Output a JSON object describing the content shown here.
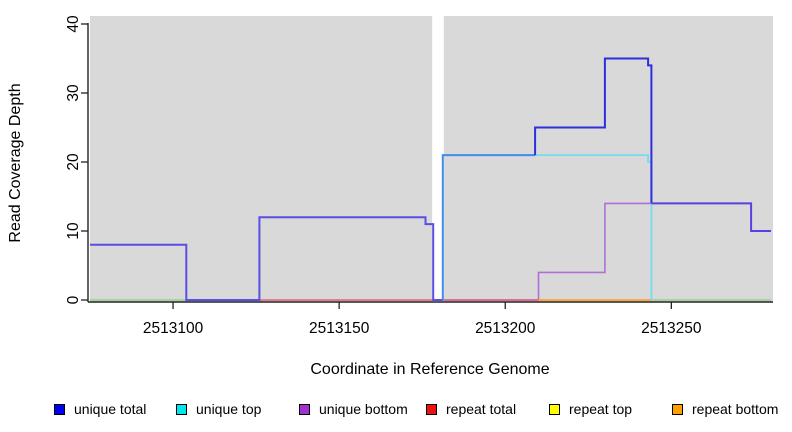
{
  "chart_data": {
    "type": "line",
    "step": true,
    "title": "",
    "xlabel": "Coordinate in Reference Genome",
    "ylabel": "Read Coverage Depth",
    "xlim": [
      2513075,
      2513280
    ],
    "ylim": [
      0,
      40
    ],
    "x_ticks": [
      "2513100",
      "2513150",
      "2513200",
      "2513250"
    ],
    "x_tick_values": [
      2513100,
      2513150,
      2513200,
      2513250
    ],
    "y_ticks": [
      "0",
      "10",
      "20",
      "30",
      "40"
    ],
    "y_tick_values": [
      0,
      10,
      20,
      30,
      40
    ],
    "grid": false,
    "plot_background": "#D9D9D9",
    "gap_band": {
      "x1": 2513178.0,
      "x2": 2513181.5,
      "color": "#FFFFFF"
    },
    "legend_position": "bottom",
    "legend": [
      {
        "label": "unique total",
        "color": "#0000EE"
      },
      {
        "label": "unique top",
        "color": "#00E5EE"
      },
      {
        "label": "unique bottom",
        "color": "#A22FD0"
      },
      {
        "label": "repeat total",
        "color": "#EE1111"
      },
      {
        "label": "repeat top",
        "color": "#FFFF00"
      },
      {
        "label": "repeat bottom",
        "color": "#FFA000"
      }
    ],
    "series": [
      {
        "name": "unique total",
        "color": "#0000EE",
        "step_points": [
          [
            2513075,
            8
          ],
          [
            2513104,
            0
          ],
          [
            2513126,
            12
          ],
          [
            2513176,
            11
          ],
          [
            2513178,
            0
          ],
          [
            2513181,
            21
          ],
          [
            2513209,
            25
          ],
          [
            2513230,
            35
          ],
          [
            2513243,
            34
          ],
          [
            2513244,
            14
          ],
          [
            2513274,
            10
          ],
          [
            2513280,
            10
          ]
        ]
      },
      {
        "name": "unique top",
        "color": "#00E5EE",
        "step_points": [
          [
            2513075,
            0
          ],
          [
            2513181,
            21
          ],
          [
            2513243,
            20
          ],
          [
            2513244,
            0
          ],
          [
            2513280,
            0
          ]
        ]
      },
      {
        "name": "unique bottom",
        "color": "#A22FD0",
        "step_points": [
          [
            2513075,
            8
          ],
          [
            2513104,
            0
          ],
          [
            2513126,
            12
          ],
          [
            2513176,
            11
          ],
          [
            2513178,
            0
          ],
          [
            2513210,
            4
          ],
          [
            2513230,
            14
          ],
          [
            2513274,
            10
          ],
          [
            2513280,
            10
          ]
        ]
      },
      {
        "name": "repeat total",
        "color": "#EE1111",
        "step_points": [
          [
            2513126,
            0
          ],
          [
            2513210,
            0
          ]
        ]
      },
      {
        "name": "repeat top",
        "color": "#FFFF00",
        "step_points": [
          [
            2513075,
            0
          ],
          [
            2513280,
            0
          ]
        ]
      },
      {
        "name": "repeat bottom",
        "color": "#FFA000",
        "step_points": [
          [
            2513210,
            0
          ],
          [
            2513244,
            0
          ]
        ]
      }
    ],
    "render_segments": [
      {
        "name": "zero-green-left",
        "color": "#8FD48F",
        "width": 1.6,
        "points": [
          [
            2513075,
            0
          ],
          [
            2513104,
            0
          ]
        ]
      },
      {
        "name": "zero-green-right",
        "color": "#8FD48F",
        "width": 1.6,
        "points": [
          [
            2513244,
            0
          ],
          [
            2513280,
            0
          ]
        ]
      },
      {
        "name": "unique-bottom-visible",
        "color": "#B06FD8",
        "width": 1.6,
        "points": [
          [
            2513181.2,
            0
          ],
          [
            2513210,
            0
          ],
          [
            2513210,
            4
          ],
          [
            2513230,
            4
          ],
          [
            2513230,
            14
          ],
          [
            2513244,
            14
          ]
        ]
      },
      {
        "name": "zero-red",
        "color": "#E0607A",
        "width": 1.6,
        "points": [
          [
            2513126,
            0
          ],
          [
            2513210,
            0
          ]
        ]
      },
      {
        "name": "zero-orange",
        "color": "#FFA030",
        "width": 1.8,
        "points": [
          [
            2513210,
            0
          ],
          [
            2513244,
            0
          ]
        ]
      },
      {
        "name": "unique-top-visible",
        "color": "#72DEED",
        "width": 1.8,
        "points": [
          [
            2513209,
            21
          ],
          [
            2513243,
            21
          ],
          [
            2513243,
            20
          ],
          [
            2513244,
            20
          ],
          [
            2513244,
            0
          ]
        ]
      },
      {
        "name": "total-left-violet",
        "color": "#5A4EE6",
        "width": 2,
        "points": [
          [
            2513075,
            8
          ],
          [
            2513104,
            8
          ],
          [
            2513104,
            0
          ],
          [
            2513126,
            0
          ],
          [
            2513126,
            12
          ],
          [
            2513176,
            12
          ],
          [
            2513176,
            11
          ],
          [
            2513178.3,
            11
          ],
          [
            2513178.3,
            0
          ],
          [
            2513181.2,
            0
          ]
        ]
      },
      {
        "name": "total-azure",
        "color": "#3F8CEF",
        "width": 2,
        "points": [
          [
            2513181.2,
            0
          ],
          [
            2513181.2,
            21
          ],
          [
            2513209,
            21
          ]
        ]
      },
      {
        "name": "total-strong-blue",
        "color": "#2E2EDF",
        "width": 2,
        "points": [
          [
            2513209,
            21
          ],
          [
            2513209,
            25
          ],
          [
            2513230,
            25
          ],
          [
            2513230,
            35
          ],
          [
            2513243,
            35
          ],
          [
            2513243,
            34
          ],
          [
            2513244,
            34
          ],
          [
            2513244,
            14
          ]
        ]
      },
      {
        "name": "total-right-violet",
        "color": "#5A40E0",
        "width": 2,
        "points": [
          [
            2513244,
            14
          ],
          [
            2513274,
            14
          ],
          [
            2513274,
            10
          ],
          [
            2513280,
            10
          ]
        ]
      }
    ]
  }
}
